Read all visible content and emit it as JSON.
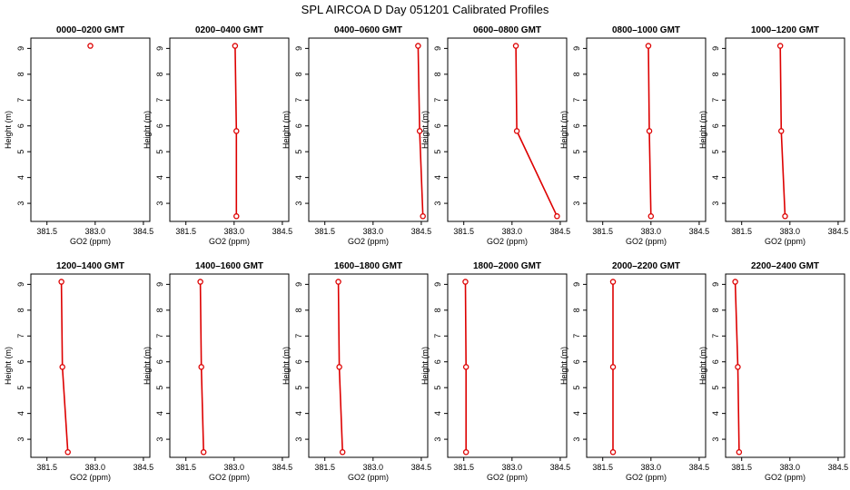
{
  "figure_title": "SPL AIRCOA D  Day 051201  Calibrated Profiles",
  "colors": {
    "series": "#dd0000",
    "axis": "#000000"
  },
  "chart_data": [
    {
      "type": "line",
      "title": "0000–0200 GMT",
      "xlabel": "GO2 (ppm)",
      "ylabel": "Height (m)",
      "xlim": [
        381.0,
        384.7
      ],
      "ylim": [
        2.3,
        9.4
      ],
      "xticks": [
        "381.5",
        "383.0",
        "384.5"
      ],
      "xtick_values": [
        381.5,
        383.0,
        384.5
      ],
      "yticks": [
        3,
        4,
        5,
        6,
        7,
        8,
        9
      ],
      "points": [
        {
          "x": 382.85,
          "y": 9.1
        }
      ]
    },
    {
      "type": "line",
      "title": "0200–0400 GMT",
      "xlabel": "GO2 (ppm)",
      "ylabel": "Height (m)",
      "xlim": [
        381.0,
        384.7
      ],
      "ylim": [
        2.3,
        9.4
      ],
      "xticks": [
        "381.5",
        "383.0",
        "384.5"
      ],
      "xtick_values": [
        381.5,
        383.0,
        384.5
      ],
      "yticks": [
        3,
        4,
        5,
        6,
        7,
        8,
        9
      ],
      "points": [
        {
          "x": 383.03,
          "y": 9.1
        },
        {
          "x": 383.07,
          "y": 5.8
        },
        {
          "x": 383.07,
          "y": 2.5
        }
      ]
    },
    {
      "type": "line",
      "title": "0400–0600 GMT",
      "xlabel": "GO2 (ppm)",
      "ylabel": "Height (m)",
      "xlim": [
        381.0,
        384.7
      ],
      "ylim": [
        2.3,
        9.4
      ],
      "xticks": [
        "381.5",
        "383.0",
        "384.5"
      ],
      "xtick_values": [
        381.5,
        383.0,
        384.5
      ],
      "yticks": [
        3,
        4,
        5,
        6,
        7,
        8,
        9
      ],
      "points": [
        {
          "x": 384.4,
          "y": 9.1
        },
        {
          "x": 384.45,
          "y": 5.8
        },
        {
          "x": 384.55,
          "y": 2.5
        }
      ]
    },
    {
      "type": "line",
      "title": "0600–0800 GMT",
      "xlabel": "GO2 (ppm)",
      "ylabel": "Height (m)",
      "xlim": [
        381.0,
        384.7
      ],
      "ylim": [
        2.3,
        9.4
      ],
      "xticks": [
        "381.5",
        "383.0",
        "384.5"
      ],
      "xtick_values": [
        381.5,
        383.0,
        384.5
      ],
      "yticks": [
        3,
        4,
        5,
        6,
        7,
        8,
        9
      ],
      "points": [
        {
          "x": 383.12,
          "y": 9.1
        },
        {
          "x": 383.15,
          "y": 5.8
        },
        {
          "x": 384.4,
          "y": 2.5
        }
      ]
    },
    {
      "type": "line",
      "title": "0800–1000 GMT",
      "xlabel": "GO2 (ppm)",
      "ylabel": "Height (m)",
      "xlim": [
        381.0,
        384.7
      ],
      "ylim": [
        2.3,
        9.4
      ],
      "xticks": [
        "381.5",
        "383.0",
        "384.5"
      ],
      "xtick_values": [
        381.5,
        383.0,
        384.5
      ],
      "yticks": [
        3,
        4,
        5,
        6,
        7,
        8,
        9
      ],
      "points": [
        {
          "x": 382.92,
          "y": 9.1
        },
        {
          "x": 382.95,
          "y": 5.8
        },
        {
          "x": 383.0,
          "y": 2.5
        }
      ]
    },
    {
      "type": "line",
      "title": "1000–1200 GMT",
      "xlabel": "GO2 (ppm)",
      "ylabel": "Height (m)",
      "xlim": [
        381.0,
        384.7
      ],
      "ylim": [
        2.3,
        9.4
      ],
      "xticks": [
        "381.5",
        "383.0",
        "384.5"
      ],
      "xtick_values": [
        381.5,
        383.0,
        384.5
      ],
      "yticks": [
        3,
        4,
        5,
        6,
        7,
        8,
        9
      ],
      "points": [
        {
          "x": 382.7,
          "y": 9.1
        },
        {
          "x": 382.73,
          "y": 5.8
        },
        {
          "x": 382.85,
          "y": 2.5
        }
      ]
    },
    {
      "type": "line",
      "title": "1200–1400 GMT",
      "xlabel": "GO2 (ppm)",
      "ylabel": "Height (m)",
      "xlim": [
        381.0,
        384.7
      ],
      "ylim": [
        2.3,
        9.4
      ],
      "xticks": [
        "381.5",
        "383.0",
        "384.5"
      ],
      "xtick_values": [
        381.5,
        383.0,
        384.5
      ],
      "yticks": [
        3,
        4,
        5,
        6,
        7,
        8,
        9
      ],
      "points": [
        {
          "x": 381.95,
          "y": 9.1
        },
        {
          "x": 381.98,
          "y": 5.8
        },
        {
          "x": 382.15,
          "y": 2.5
        }
      ]
    },
    {
      "type": "line",
      "title": "1400–1600 GMT",
      "xlabel": "GO2 (ppm)",
      "ylabel": "Height (m)",
      "xlim": [
        381.0,
        384.7
      ],
      "ylim": [
        2.3,
        9.4
      ],
      "xticks": [
        "381.5",
        "383.0",
        "384.5"
      ],
      "xtick_values": [
        381.5,
        383.0,
        384.5
      ],
      "yticks": [
        3,
        4,
        5,
        6,
        7,
        8,
        9
      ],
      "points": [
        {
          "x": 381.95,
          "y": 9.1
        },
        {
          "x": 381.98,
          "y": 5.8
        },
        {
          "x": 382.05,
          "y": 2.5
        }
      ]
    },
    {
      "type": "line",
      "title": "1600–1800 GMT",
      "xlabel": "GO2 (ppm)",
      "ylabel": "Height (m)",
      "xlim": [
        381.0,
        384.7
      ],
      "ylim": [
        2.3,
        9.4
      ],
      "xticks": [
        "381.5",
        "383.0",
        "384.5"
      ],
      "xtick_values": [
        381.5,
        383.0,
        384.5
      ],
      "yticks": [
        3,
        4,
        5,
        6,
        7,
        8,
        9
      ],
      "points": [
        {
          "x": 381.92,
          "y": 9.1
        },
        {
          "x": 381.95,
          "y": 5.8
        },
        {
          "x": 382.05,
          "y": 2.5
        }
      ]
    },
    {
      "type": "line",
      "title": "1800–2000 GMT",
      "xlabel": "GO2 (ppm)",
      "ylabel": "Height (m)",
      "xlim": [
        381.0,
        384.7
      ],
      "ylim": [
        2.3,
        9.4
      ],
      "xticks": [
        "381.5",
        "383.0",
        "384.5"
      ],
      "xtick_values": [
        381.5,
        383.0,
        384.5
      ],
      "yticks": [
        3,
        4,
        5,
        6,
        7,
        8,
        9
      ],
      "points": [
        {
          "x": 381.55,
          "y": 9.1
        },
        {
          "x": 381.57,
          "y": 5.8
        },
        {
          "x": 381.57,
          "y": 2.5
        }
      ]
    },
    {
      "type": "line",
      "title": "2000–2200 GMT",
      "xlabel": "GO2 (ppm)",
      "ylabel": "Height (m)",
      "xlim": [
        381.0,
        384.7
      ],
      "ylim": [
        2.3,
        9.4
      ],
      "xticks": [
        "381.5",
        "383.0",
        "384.5"
      ],
      "xtick_values": [
        381.5,
        383.0,
        384.5
      ],
      "yticks": [
        3,
        4,
        5,
        6,
        7,
        8,
        9
      ],
      "points": [
        {
          "x": 381.82,
          "y": 9.1
        },
        {
          "x": 381.82,
          "y": 5.8
        },
        {
          "x": 381.82,
          "y": 2.5
        }
      ]
    },
    {
      "type": "line",
      "title": "2200–2400 GMT",
      "xlabel": "GO2 (ppm)",
      "ylabel": "Height (m)",
      "xlim": [
        381.0,
        384.7
      ],
      "ylim": [
        2.3,
        9.4
      ],
      "xticks": [
        "381.5",
        "383.0",
        "384.5"
      ],
      "xtick_values": [
        381.5,
        383.0,
        384.5
      ],
      "yticks": [
        3,
        4,
        5,
        6,
        7,
        8,
        9
      ],
      "points": [
        {
          "x": 381.3,
          "y": 9.1
        },
        {
          "x": 381.38,
          "y": 5.8
        },
        {
          "x": 381.42,
          "y": 2.5
        }
      ]
    }
  ]
}
